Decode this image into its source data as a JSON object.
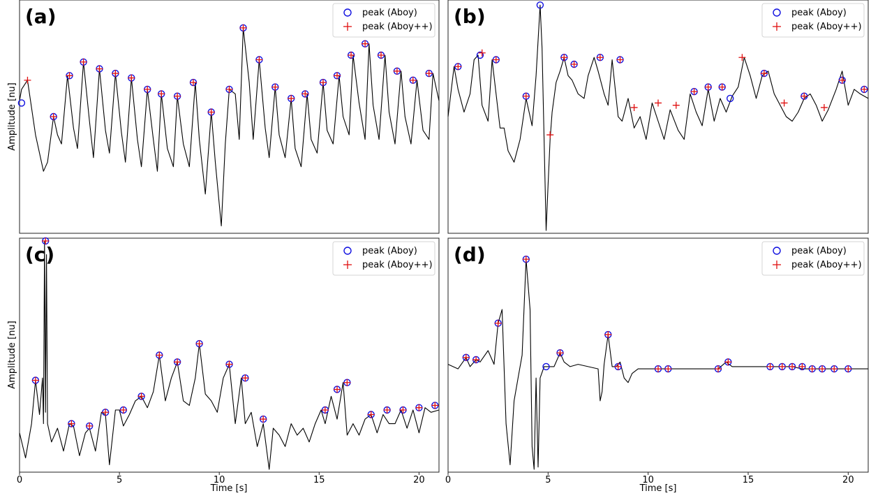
{
  "colors": {
    "signal": "#000000",
    "aboy_marker": "#1010e0",
    "aboypp_marker": "#e01010"
  },
  "chart_data": [
    {
      "type": "line",
      "panel": "(a)",
      "xlabel": "",
      "ylabel": "Amplitude [nu]",
      "xlim": [
        0,
        21
      ],
      "ylim": [
        0,
        100
      ],
      "x_ticks_labeled": false,
      "legend": {
        "placement": "top-right",
        "entries": [
          "peak (Aboy)",
          "peak (Aboy++)"
        ]
      },
      "signal": {
        "x": [
          0,
          0.1,
          0.4,
          0.8,
          1.2,
          1.4,
          1.7,
          1.9,
          2.1,
          2.4,
          2.7,
          2.9,
          3.2,
          3.5,
          3.7,
          4.0,
          4.3,
          4.5,
          4.8,
          5.1,
          5.3,
          5.6,
          5.9,
          6.1,
          6.4,
          6.7,
          6.9,
          7.1,
          7.4,
          7.7,
          7.9,
          8.2,
          8.5,
          8.8,
          9.0,
          9.3,
          9.6,
          9.8,
          10.1,
          10.3,
          10.5,
          10.8,
          11.0,
          11.2,
          11.5,
          11.7,
          12.0,
          12.3,
          12.5,
          12.8,
          13.0,
          13.3,
          13.6,
          13.8,
          14.1,
          14.4,
          14.6,
          14.9,
          15.2,
          15.4,
          15.7,
          16.0,
          16.2,
          16.5,
          16.7,
          17.0,
          17.3,
          17.5,
          17.7,
          18.0,
          18.3,
          18.5,
          18.8,
          19.1,
          19.3,
          19.6,
          19.9,
          20.2,
          20.5,
          20.7,
          21.0
        ],
        "y": [
          57,
          62,
          66,
          42,
          26,
          30,
          50,
          42,
          38,
          68,
          45,
          36,
          74,
          48,
          32,
          71,
          44,
          34,
          69,
          43,
          30,
          67,
          40,
          28,
          62,
          40,
          26,
          60,
          36,
          28,
          59,
          38,
          28,
          65,
          40,
          16,
          52,
          30,
          2,
          38,
          62,
          60,
          40,
          89,
          65,
          40,
          75,
          45,
          32,
          63,
          42,
          32,
          58,
          36,
          28,
          60,
          40,
          34,
          65,
          44,
          38,
          68,
          50,
          42,
          77,
          56,
          40,
          82,
          55,
          40,
          77,
          52,
          38,
          70,
          50,
          38,
          66,
          44,
          40,
          69,
          57
        ]
      },
      "peaks_aboy": {
        "x": [
          0.1,
          1.7,
          2.5,
          3.2,
          4.0,
          4.8,
          5.6,
          6.4,
          7.1,
          7.9,
          8.7,
          9.6,
          10.5,
          11.2,
          12.0,
          12.8,
          13.6,
          14.3,
          15.2,
          15.9,
          16.6,
          17.3,
          18.1,
          18.9,
          19.7,
          20.5
        ],
        "y": [
          56,
          50,
          68,
          74,
          71,
          69,
          67,
          62,
          60,
          59,
          65,
          52,
          62,
          89,
          75,
          63,
          58,
          60,
          65,
          68,
          77,
          82,
          77,
          70,
          66,
          69
        ]
      },
      "peaks_aboypp": {
        "x": [
          0.4,
          1.7,
          2.5,
          3.2,
          4.0,
          4.8,
          5.6,
          6.4,
          7.1,
          7.9,
          8.7,
          9.6,
          10.5,
          11.2,
          12.0,
          12.8,
          13.6,
          14.3,
          15.2,
          15.9,
          16.6,
          17.3,
          18.1,
          18.9,
          19.7,
          20.5
        ],
        "y": [
          66,
          50,
          68,
          74,
          71,
          69,
          67,
          62,
          60,
          59,
          65,
          52,
          62,
          89,
          75,
          63,
          58,
          60,
          65,
          68,
          77,
          82,
          77,
          70,
          66,
          69
        ]
      }
    },
    {
      "type": "line",
      "panel": "(b)",
      "xlabel": "",
      "ylabel": "",
      "xlim": [
        0,
        21
      ],
      "ylim": [
        0,
        100
      ],
      "x_ticks_labeled": false,
      "legend": {
        "placement": "top-right",
        "entries": [
          "peak (Aboy)",
          "peak (Aboy++)"
        ]
      },
      "signal": {
        "x": [
          0,
          0.3,
          0.5,
          0.8,
          1.1,
          1.3,
          1.5,
          1.7,
          2.0,
          2.2,
          2.4,
          2.6,
          2.8,
          3.0,
          3.3,
          3.6,
          3.9,
          4.2,
          4.4,
          4.6,
          4.7,
          4.8,
          4.9,
          5.0,
          5.1,
          5.2,
          5.4,
          5.6,
          5.8,
          6.0,
          6.2,
          6.5,
          6.8,
          7.0,
          7.3,
          7.5,
          7.8,
          8.0,
          8.2,
          8.5,
          8.7,
          9.0,
          9.3,
          9.6,
          9.9,
          10.2,
          10.5,
          10.8,
          11.1,
          11.5,
          11.8,
          12.1,
          12.4,
          12.7,
          13.0,
          13.3,
          13.6,
          13.9,
          14.2,
          14.5,
          14.8,
          15.1,
          15.4,
          15.7,
          16.0,
          16.3,
          16.6,
          16.9,
          17.2,
          17.5,
          17.8,
          18.1,
          18.4,
          18.7,
          19.0,
          19.4,
          19.7,
          20.0,
          20.3,
          20.6,
          21.0
        ],
        "y": [
          50,
          72,
          62,
          52,
          60,
          75,
          77,
          55,
          48,
          75,
          60,
          45,
          45,
          35,
          30,
          40,
          58,
          46,
          68,
          99,
          80,
          40,
          0,
          20,
          40,
          52,
          65,
          70,
          76,
          68,
          66,
          60,
          58,
          68,
          76,
          70,
          60,
          55,
          75,
          50,
          48,
          58,
          45,
          50,
          40,
          56,
          48,
          40,
          53,
          44,
          40,
          60,
          52,
          46,
          62,
          48,
          58,
          52,
          59,
          63,
          76,
          68,
          58,
          68,
          70,
          60,
          55,
          50,
          48,
          52,
          58,
          60,
          55,
          48,
          53,
          62,
          70,
          55,
          62,
          60,
          58
        ]
      },
      "peaks_aboy": {
        "x": [
          0.5,
          1.6,
          2.4,
          3.9,
          4.6,
          5.8,
          6.3,
          7.6,
          8.6,
          12.3,
          13.0,
          13.7,
          14.1,
          15.8,
          17.8,
          19.7,
          20.8
        ],
        "y": [
          72,
          77,
          75,
          59,
          99,
          76,
          73,
          76,
          75,
          61,
          63,
          63,
          58,
          69,
          59,
          66,
          62
        ]
      },
      "peaks_aboypp": {
        "x": [
          0.5,
          1.7,
          2.4,
          3.9,
          5.1,
          5.8,
          6.3,
          7.6,
          8.6,
          9.3,
          10.5,
          11.4,
          12.3,
          13.0,
          13.7,
          14.7,
          15.8,
          16.8,
          17.8,
          18.8,
          19.7,
          20.8
        ],
        "y": [
          72,
          78,
          75,
          59,
          42,
          76,
          73,
          76,
          75,
          54,
          56,
          55,
          61,
          63,
          63,
          76,
          69,
          56,
          59,
          54,
          66,
          62
        ]
      }
    },
    {
      "type": "line",
      "panel": "(c)",
      "xlabel": "Time [s]",
      "ylabel": "Amplitude [nu]",
      "xlim": [
        0,
        21
      ],
      "ylim": [
        0,
        100
      ],
      "x_ticks": [
        0,
        5,
        10,
        15,
        20
      ],
      "legend": {
        "placement": "top-right",
        "entries": [
          "peak (Aboy)",
          "peak (Aboy++)"
        ]
      },
      "signal": {
        "x": [
          0,
          0.3,
          0.6,
          0.8,
          1.0,
          1.15,
          1.2,
          1.25,
          1.3,
          1.35,
          1.4,
          1.6,
          1.9,
          2.2,
          2.5,
          2.7,
          3.0,
          3.3,
          3.5,
          3.8,
          4.1,
          4.3,
          4.5,
          4.8,
          5.0,
          5.2,
          5.5,
          5.8,
          6.1,
          6.4,
          6.7,
          7.0,
          7.3,
          7.6,
          7.9,
          8.2,
          8.5,
          8.8,
          9.0,
          9.3,
          9.6,
          9.9,
          10.2,
          10.5,
          10.8,
          11.1,
          11.3,
          11.6,
          11.9,
          12.2,
          12.5,
          12.7,
          13.0,
          13.3,
          13.6,
          13.9,
          14.2,
          14.5,
          14.8,
          15.1,
          15.3,
          15.6,
          15.9,
          16.2,
          16.4,
          16.7,
          17.0,
          17.3,
          17.6,
          17.9,
          18.2,
          18.5,
          18.8,
          19.1,
          19.4,
          19.7,
          20.0,
          20.3,
          20.6,
          21.0
        ],
        "y": [
          16,
          5,
          20,
          39,
          24,
          40,
          20,
          100,
          25,
          94,
          20,
          12,
          18,
          8,
          20,
          19,
          6,
          16,
          18,
          8,
          25,
          24,
          2,
          26,
          26,
          19,
          24,
          30,
          32,
          27,
          34,
          50,
          30,
          40,
          47,
          30,
          28,
          40,
          55,
          33,
          30,
          25,
          40,
          46,
          20,
          40,
          20,
          25,
          10,
          20,
          0,
          18,
          15,
          10,
          20,
          15,
          18,
          12,
          20,
          26,
          20,
          32,
          22,
          38,
          15,
          20,
          15,
          22,
          24,
          16,
          24,
          20,
          20,
          26,
          18,
          26,
          16,
          27,
          25,
          26
        ]
      },
      "peaks_aboy": {
        "x": [
          0.8,
          1.3,
          2.6,
          3.5,
          4.3,
          5.2,
          6.1,
          7.0,
          7.9,
          9.0,
          10.5,
          11.3,
          12.2,
          15.3,
          15.9,
          16.4,
          17.6,
          18.4,
          19.2,
          20.0,
          20.8
        ],
        "y": [
          39,
          100,
          20,
          19,
          25,
          26,
          32,
          50,
          47,
          55,
          46,
          40,
          22,
          26,
          35,
          38,
          24,
          26,
          26,
          27,
          28
        ]
      },
      "peaks_aboypp": {
        "x": [
          0.8,
          1.3,
          2.6,
          3.5,
          4.3,
          5.2,
          6.1,
          7.0,
          7.9,
          9.0,
          10.5,
          11.3,
          12.2,
          15.3,
          15.9,
          16.4,
          17.6,
          18.4,
          19.2,
          20.0,
          20.8
        ],
        "y": [
          39,
          100,
          20,
          19,
          25,
          26,
          32,
          50,
          47,
          55,
          46,
          40,
          22,
          26,
          35,
          38,
          24,
          26,
          26,
          27,
          28
        ]
      }
    },
    {
      "type": "line",
      "panel": "(d)",
      "xlabel": "Time [s]",
      "ylabel": "",
      "xlim": [
        0,
        21
      ],
      "ylim": [
        0,
        100
      ],
      "x_ticks": [
        0,
        5,
        10,
        15,
        20
      ],
      "legend": {
        "placement": "top-right",
        "entries": [
          "peak (Aboy)",
          "peak (Aboy++)"
        ]
      },
      "signal": {
        "x": [
          0,
          0.5,
          0.9,
          1.1,
          1.4,
          1.6,
          2.0,
          2.3,
          2.5,
          2.7,
          2.9,
          3.1,
          3.3,
          3.5,
          3.7,
          3.9,
          4.1,
          4.2,
          4.25,
          4.3,
          4.4,
          4.5,
          4.6,
          4.8,
          5.0,
          5.3,
          5.6,
          5.8,
          6.1,
          6.5,
          7.0,
          7.5,
          7.6,
          7.7,
          7.8,
          8.0,
          8.2,
          8.4,
          8.6,
          8.8,
          9.0,
          9.2,
          9.5,
          10.0,
          10.5,
          11.0,
          11.5,
          12.0,
          12.5,
          13.0,
          13.5,
          13.9,
          14.2,
          14.6,
          15.0,
          15.5,
          16.1,
          16.7,
          17.2,
          17.7,
          18.2,
          18.7,
          19.3,
          20.0,
          21.0
        ],
        "y": [
          46,
          44,
          49,
          45,
          48,
          47,
          52,
          46,
          64,
          70,
          20,
          2,
          30,
          40,
          50,
          92,
          70,
          10,
          5,
          0,
          40,
          1,
          40,
          45,
          45,
          45,
          51,
          47,
          45,
          46,
          45,
          44,
          30,
          34,
          46,
          59,
          45,
          45,
          47,
          40,
          38,
          42,
          44,
          44,
          44,
          44,
          44,
          44,
          44,
          44,
          44,
          47,
          45,
          45,
          45,
          45,
          45,
          45,
          45,
          44,
          44,
          44,
          44,
          44,
          44
        ]
      },
      "peaks_aboy": {
        "x": [
          0.9,
          1.4,
          2.5,
          3.9,
          4.9,
          5.6,
          8.0,
          8.5,
          10.5,
          11.0,
          13.5,
          14.0,
          16.1,
          16.7,
          17.2,
          17.7,
          18.2,
          18.7,
          19.3,
          20.0
        ],
        "y": [
          49,
          48,
          64,
          92,
          45,
          51,
          59,
          45,
          44,
          44,
          44,
          47,
          45,
          45,
          45,
          45,
          44,
          44,
          44,
          44
        ]
      },
      "peaks_aboypp": {
        "x": [
          0.9,
          1.4,
          2.5,
          3.9,
          5.6,
          8.0,
          8.5,
          10.5,
          11.0,
          13.5,
          14.0,
          16.1,
          16.7,
          17.2,
          17.7,
          18.2,
          18.7,
          19.3,
          20.0
        ],
        "y": [
          49,
          48,
          64,
          92,
          51,
          59,
          45,
          44,
          44,
          44,
          47,
          45,
          45,
          45,
          45,
          44,
          44,
          44,
          44
        ]
      }
    }
  ]
}
